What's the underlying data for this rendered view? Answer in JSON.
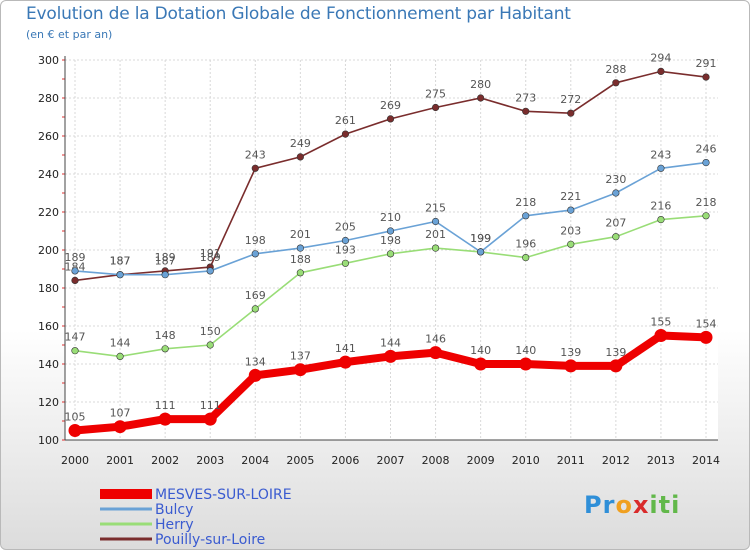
{
  "chart_data": {
    "type": "line",
    "title": "Evolution de la Dotation Globale de Fonctionnement par Habitant",
    "subtitle": "(en € et par an)",
    "xlabel": "",
    "ylabel": "",
    "ylim": [
      100,
      300
    ],
    "yticks": [
      100,
      120,
      140,
      160,
      180,
      200,
      220,
      240,
      260,
      280,
      300
    ],
    "grid": true,
    "legend_position": "bottom-left",
    "x": [
      "2000",
      "2001",
      "2002",
      "2003",
      "2004",
      "2005",
      "2006",
      "2007",
      "2008",
      "2009",
      "2010",
      "2011",
      "2012",
      "2013",
      "2014"
    ],
    "series": [
      {
        "name": "MESVES-SUR-LOIRE",
        "color": "#ee0000",
        "emphasis": true,
        "values": [
          105,
          107,
          111,
          111,
          134,
          137,
          141,
          144,
          146,
          140,
          140,
          139,
          139,
          155,
          154
        ]
      },
      {
        "name": "Bulcy",
        "color": "#6aa2d6",
        "values": [
          189,
          187,
          187,
          189,
          198,
          201,
          205,
          210,
          215,
          199,
          218,
          221,
          230,
          243,
          246
        ]
      },
      {
        "name": "Herry",
        "color": "#99dd77",
        "values": [
          147,
          144,
          148,
          150,
          169,
          188,
          193,
          198,
          201,
          199,
          196,
          203,
          207,
          216,
          218
        ]
      },
      {
        "name": "Pouilly-sur-Loire",
        "color": "#7a2d2d",
        "values": [
          184,
          187,
          189,
          191,
          243,
          249,
          261,
          269,
          275,
          280,
          273,
          272,
          288,
          294,
          291
        ]
      }
    ]
  },
  "logo": {
    "parts": [
      "Pr",
      "o",
      "x",
      "iti"
    ]
  }
}
